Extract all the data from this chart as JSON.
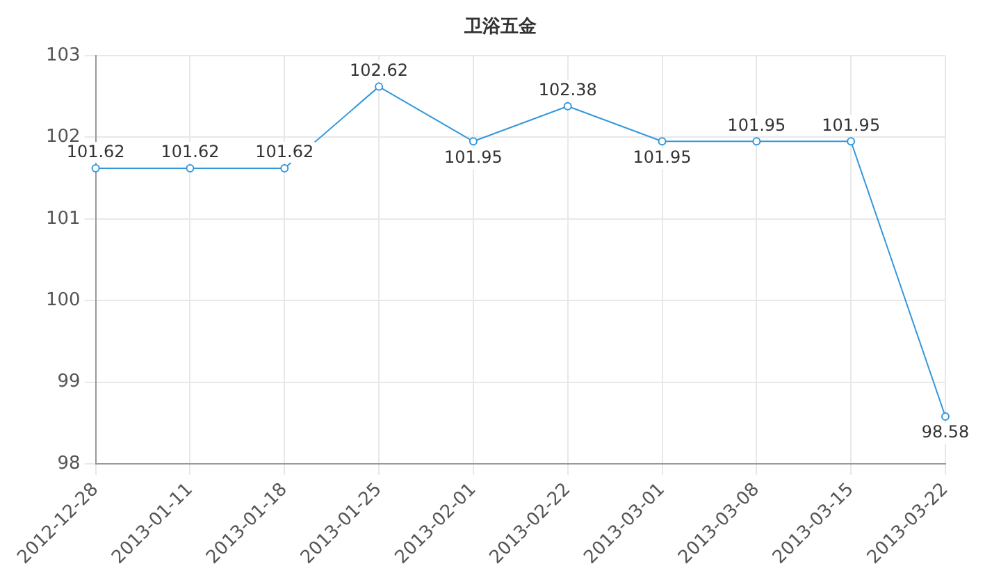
{
  "chart_data": {
    "type": "line",
    "title": "卫浴五金",
    "categories": [
      "2012-12-28",
      "2013-01-11",
      "2013-01-18",
      "2013-01-25",
      "2013-02-01",
      "2013-02-22",
      "2013-03-01",
      "2013-03-08",
      "2013-03-15",
      "2013-03-22"
    ],
    "series": [
      {
        "color": "#3398db",
        "values": [
          101.62,
          101.62,
          101.62,
          102.62,
          101.95,
          102.38,
          101.95,
          101.95,
          101.95,
          98.58
        ]
      }
    ],
    "ylim": [
      98,
      103
    ],
    "yticks": [
      98,
      99,
      100,
      101,
      102,
      103
    ],
    "grid": true,
    "legend": false,
    "marker": "circle",
    "line_style": "solid",
    "data_labels": true
  }
}
